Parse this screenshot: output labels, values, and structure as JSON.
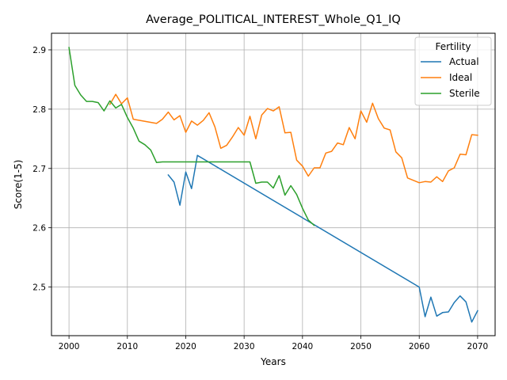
{
  "chart_data": {
    "type": "line",
    "title": "Average_POLITICAL_INTEREST_Whole_Q1_IQ",
    "xlabel": "Years",
    "ylabel": "Score(1-5)",
    "xlim": [
      1997,
      2073
    ],
    "ylim": [
      2.418,
      2.928
    ],
    "xticks": [
      2000,
      2010,
      2020,
      2030,
      2040,
      2050,
      2060,
      2070
    ],
    "yticks": [
      2.5,
      2.6,
      2.7,
      2.8,
      2.9
    ],
    "grid": true,
    "legend": {
      "title": "Fertility",
      "position": "top-right"
    },
    "series": [
      {
        "name": "Actual",
        "color": "#1f77b4",
        "x": [
          2017,
          2018,
          2019,
          2020,
          2021,
          2022,
          2060,
          2061,
          2062,
          2063,
          2064,
          2065,
          2066,
          2067,
          2068,
          2069,
          2070
        ],
        "y": [
          2.689,
          2.677,
          2.638,
          2.694,
          2.666,
          2.722,
          2.5,
          2.45,
          2.483,
          2.451,
          2.457,
          2.458,
          2.474,
          2.485,
          2.475,
          2.441,
          2.46
        ]
      },
      {
        "name": "Ideal",
        "color": "#ff7f0e",
        "x": [
          2007,
          2008,
          2009,
          2010,
          2011,
          2015,
          2016,
          2017,
          2018,
          2019,
          2020,
          2021,
          2022,
          2023,
          2024,
          2025,
          2026,
          2027,
          2028,
          2029,
          2030,
          2031,
          2032,
          2033,
          2034,
          2035,
          2036,
          2037,
          2038,
          2039,
          2040,
          2041,
          2042,
          2043,
          2044,
          2045,
          2046,
          2047,
          2048,
          2049,
          2050,
          2051,
          2052,
          2053,
          2054,
          2055,
          2056,
          2057,
          2058,
          2060,
          2061,
          2062,
          2063,
          2064,
          2065,
          2066,
          2067,
          2068,
          2069,
          2070
        ],
        "y": [
          2.808,
          2.825,
          2.809,
          2.819,
          2.783,
          2.776,
          2.783,
          2.795,
          2.782,
          2.789,
          2.761,
          2.78,
          2.773,
          2.781,
          2.794,
          2.77,
          2.734,
          2.739,
          2.753,
          2.769,
          2.756,
          2.788,
          2.75,
          2.79,
          2.801,
          2.797,
          2.804,
          2.76,
          2.761,
          2.714,
          2.704,
          2.687,
          2.701,
          2.701,
          2.726,
          2.729,
          2.743,
          2.74,
          2.769,
          2.75,
          2.797,
          2.778,
          2.81,
          2.784,
          2.768,
          2.765,
          2.728,
          2.718,
          2.684,
          2.676,
          2.678,
          2.677,
          2.686,
          2.678,
          2.696,
          2.701,
          2.724,
          2.723,
          2.757,
          2.756
        ]
      },
      {
        "name": "Sterile",
        "color": "#2ca02c",
        "x": [
          2000,
          2001,
          2002,
          2003,
          2004,
          2005,
          2006,
          2007,
          2008,
          2009,
          2010,
          2011,
          2012,
          2013,
          2014,
          2015,
          2016,
          2017,
          2031,
          2032,
          2033,
          2034,
          2035,
          2036,
          2037,
          2038,
          2039,
          2040,
          2041,
          2042
        ],
        "y": [
          2.904,
          2.84,
          2.824,
          2.813,
          2.813,
          2.811,
          2.797,
          2.814,
          2.802,
          2.808,
          2.786,
          2.768,
          2.746,
          2.74,
          2.731,
          2.71,
          2.711,
          2.711,
          2.711,
          2.675,
          2.677,
          2.677,
          2.667,
          2.688,
          2.655,
          2.671,
          2.656,
          2.633,
          2.613,
          2.604
        ]
      }
    ]
  }
}
